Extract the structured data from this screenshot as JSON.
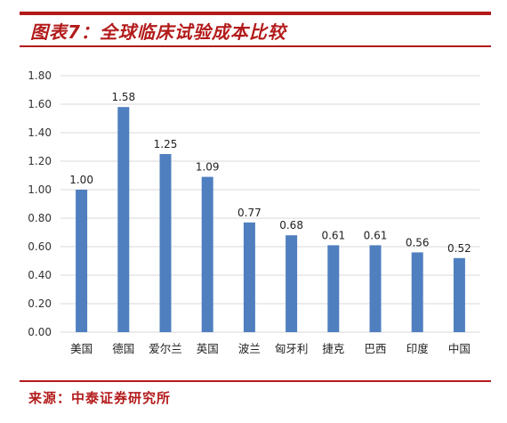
{
  "figure": {
    "title": "图表7：全球临床试验成本比较",
    "source": "来源：中泰证券研究所"
  },
  "chart_data": {
    "type": "bar",
    "title": "",
    "xlabel": "",
    "ylabel": "",
    "ylim": [
      0,
      1.8
    ],
    "yticks": [
      "0.00",
      "0.20",
      "0.40",
      "0.60",
      "0.80",
      "1.00",
      "1.20",
      "1.40",
      "1.60",
      "1.80"
    ],
    "categories": [
      "美国",
      "德国",
      "爱尔兰",
      "英国",
      "波兰",
      "匈牙利",
      "捷克",
      "巴西",
      "印度",
      "中国"
    ],
    "values": [
      1.0,
      1.58,
      1.25,
      1.09,
      0.77,
      0.68,
      0.61,
      0.61,
      0.56,
      0.52
    ],
    "value_labels": [
      "1.00",
      "1.58",
      "1.25",
      "1.09",
      "0.77",
      "0.68",
      "0.61",
      "0.61",
      "0.56",
      "0.52"
    ],
    "bar_color": "#4f7fbf",
    "grid": true,
    "legend": "none"
  },
  "colors": {
    "accent": "#b31b1b",
    "gridline": "#d9d9d9"
  }
}
